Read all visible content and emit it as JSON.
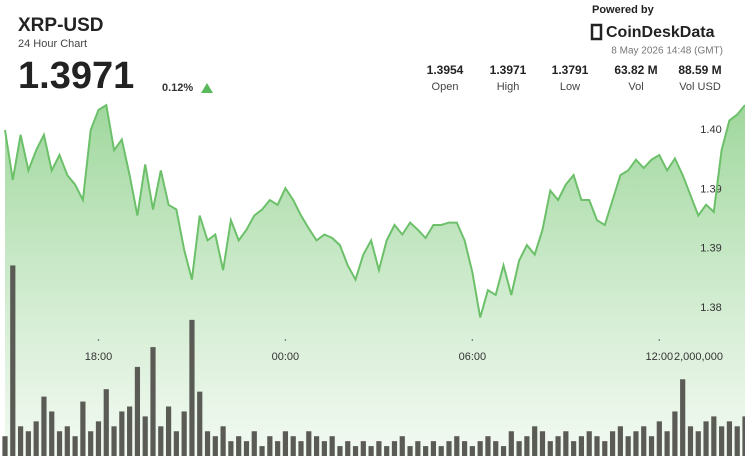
{
  "header": {
    "symbol": "XRP-USD",
    "subtitle": "24 Hour Chart",
    "price": "1.3971",
    "change": "0.12%",
    "powered_by": "Powered by",
    "brand": "CoinDeskData",
    "timestamp": "8 May 2026 14:48 (GMT)",
    "stats": [
      {
        "value": "1.3954",
        "label": "Open"
      },
      {
        "value": "1.3971",
        "label": "High"
      },
      {
        "value": "1.3791",
        "label": "Low"
      },
      {
        "value": "63.82 M",
        "label": "Vol"
      },
      {
        "value": "88.59 M",
        "label": "Vol USD"
      }
    ]
  },
  "chart_data": {
    "type": "area",
    "color": "#6cc06a",
    "categories": [
      null,
      null,
      null,
      null,
      null,
      null,
      null,
      null,
      null,
      null,
      null,
      null,
      "18:00",
      null,
      null,
      null,
      null,
      null,
      null,
      null,
      null,
      null,
      null,
      null,
      null,
      null,
      null,
      null,
      null,
      null,
      null,
      null,
      null,
      null,
      null,
      null,
      "00:00",
      null,
      null,
      null,
      null,
      null,
      null,
      null,
      null,
      null,
      null,
      null,
      null,
      null,
      null,
      null,
      null,
      null,
      null,
      null,
      null,
      null,
      null,
      null,
      "06:00",
      null,
      null,
      null,
      null,
      null,
      null,
      null,
      null,
      null,
      null,
      null,
      null,
      null,
      null,
      null,
      null,
      null,
      null,
      null,
      null,
      null,
      null,
      null,
      "12:00",
      null,
      null,
      null,
      null,
      null,
      null,
      null,
      null,
      null,
      null,
      null
    ],
    "values": [
      1.395,
      1.3908,
      1.3946,
      1.3916,
      1.3933,
      1.3946,
      1.3916,
      1.3929,
      1.3912,
      1.3904,
      1.3891,
      1.395,
      1.3967,
      1.3971,
      1.3933,
      1.3942,
      1.3912,
      1.3878,
      1.3921,
      1.3883,
      1.3916,
      1.3887,
      1.3883,
      1.3849,
      1.3824,
      1.3878,
      1.3857,
      1.3862,
      1.3832,
      1.3874,
      1.3857,
      1.3866,
      1.3878,
      1.3883,
      1.3891,
      1.3887,
      1.3901,
      1.3891,
      1.3878,
      1.3867,
      1.3857,
      1.3862,
      1.3859,
      1.3853,
      1.3836,
      1.3824,
      1.3845,
      1.3857,
      1.3832,
      1.3857,
      1.387,
      1.3862,
      1.3872,
      1.3866,
      1.3859,
      1.387,
      1.387,
      1.3872,
      1.3872,
      1.3857,
      1.383,
      1.3792,
      1.3815,
      1.3811,
      1.3836,
      1.3811,
      1.384,
      1.3853,
      1.3845,
      1.3866,
      1.3899,
      1.3891,
      1.3904,
      1.3912,
      1.3891,
      1.3891,
      1.3874,
      1.387,
      1.3891,
      1.3912,
      1.3916,
      1.3925,
      1.3918,
      1.3925,
      1.3929,
      1.3916,
      1.3926,
      1.3912,
      1.3895,
      1.3878,
      1.3887,
      1.3881,
      1.3933,
      1.3958,
      1.3963,
      1.3971
    ],
    "ylim": [
      1.376,
      1.3985
    ],
    "yticks": [
      {
        "value": 1.395,
        "label": "1.40"
      },
      {
        "value": 1.39,
        "label": "1.39"
      },
      {
        "value": 1.385,
        "label": "1.39"
      },
      {
        "value": 1.38,
        "label": "1.38"
      }
    ],
    "volume": {
      "type": "bar",
      "color": "#5b5b55",
      "values": [
        400000,
        3850000,
        600000,
        500000,
        700000,
        1200000,
        900000,
        500000,
        600000,
        400000,
        1100000,
        500000,
        700000,
        1350000,
        600000,
        900000,
        1000000,
        1800000,
        800000,
        2200000,
        600000,
        1000000,
        500000,
        900000,
        2750000,
        1300000,
        500000,
        400000,
        600000,
        300000,
        400000,
        300000,
        500000,
        200000,
        400000,
        300000,
        500000,
        400000,
        300000,
        500000,
        400000,
        300000,
        400000,
        200000,
        300000,
        200000,
        300000,
        200000,
        300000,
        200000,
        300000,
        400000,
        200000,
        300000,
        200000,
        300000,
        200000,
        300000,
        400000,
        300000,
        200000,
        300000,
        400000,
        300000,
        200000,
        500000,
        300000,
        400000,
        600000,
        500000,
        300000,
        400000,
        500000,
        300000,
        400000,
        500000,
        400000,
        300000,
        500000,
        600000,
        400000,
        500000,
        600000,
        400000,
        700000,
        500000,
        900000,
        1550000,
        600000,
        500000,
        700000,
        800000,
        600000,
        700000,
        600000,
        800000
      ],
      "ylim": [
        0,
        4000000
      ],
      "yticks": [
        {
          "value": 2000000,
          "label": "2,000,000"
        }
      ]
    }
  }
}
